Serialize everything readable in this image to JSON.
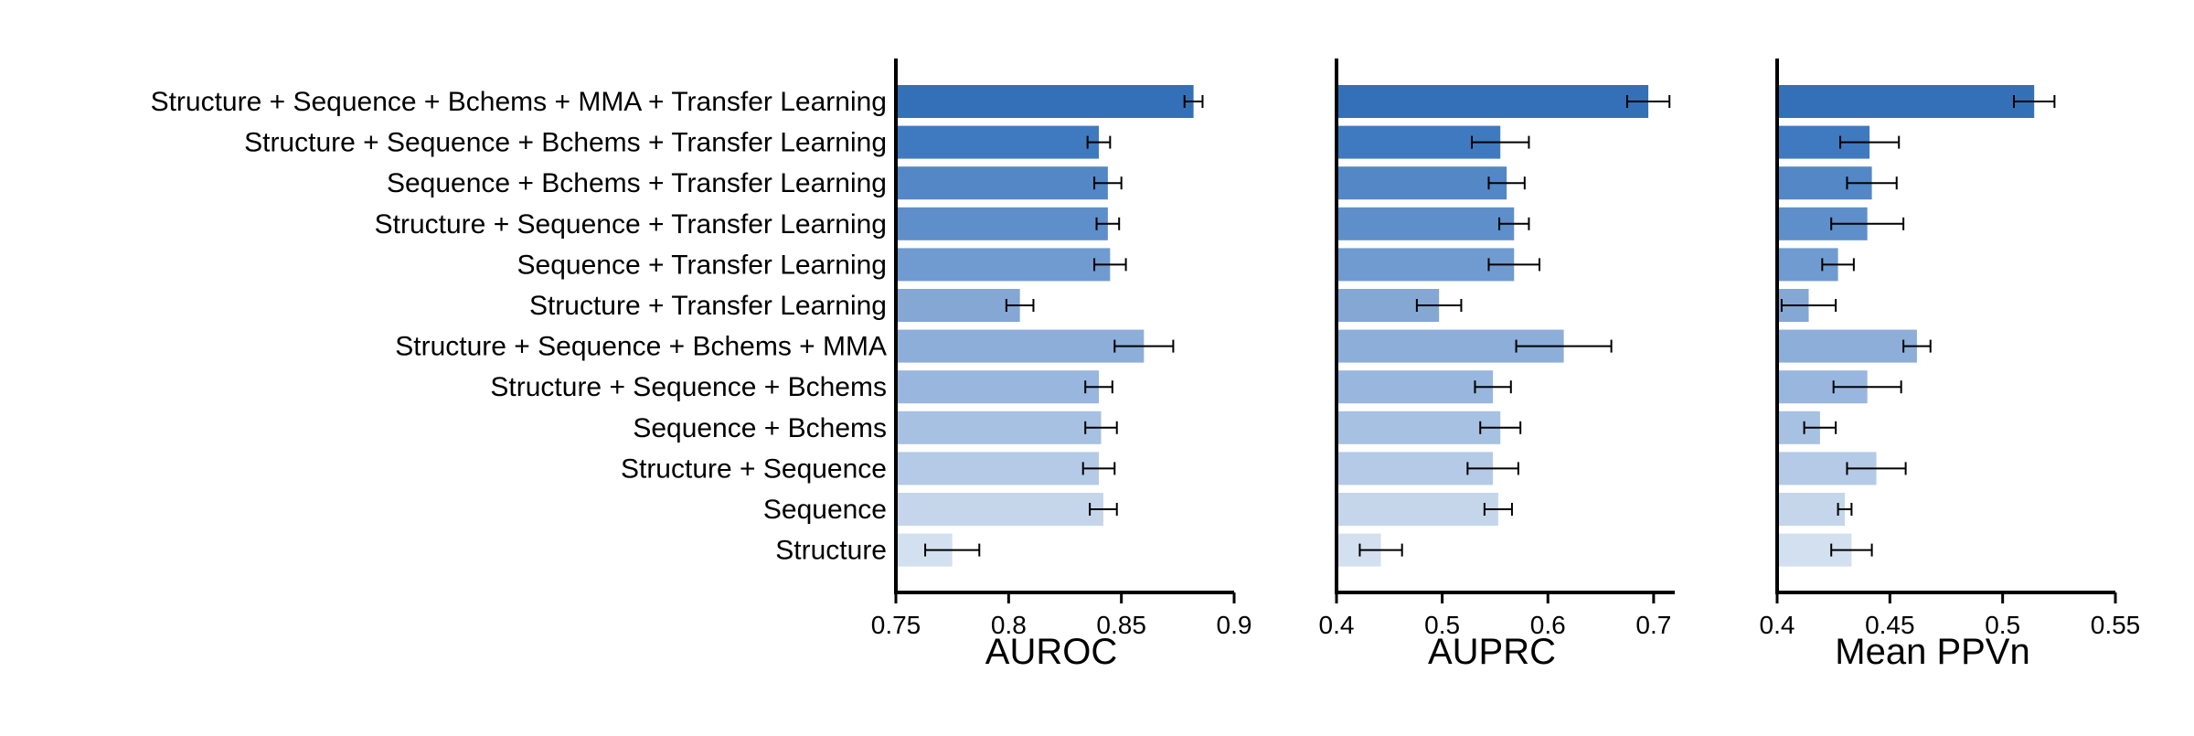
{
  "chart_data": {
    "type": "bar",
    "orientation": "horizontal",
    "grid": false,
    "legend": "none",
    "bar_colors": [
      "#3370b7",
      "#3f7ac0",
      "#5387c5",
      "#5f8fca",
      "#6f9bd0",
      "#84a7d4",
      "#8caed9",
      "#98b6de",
      "#a6c1e2",
      "#b4cae6",
      "#c5d6eb",
      "#d3e0ef"
    ],
    "categories": [
      "Structure + Sequence + Bchems + MMA + Transfer Learning",
      "Structure + Sequence + Bchems + Transfer Learning",
      "Sequence + Bchems + Transfer Learning",
      "Structure + Sequence + Transfer Learning",
      "Sequence + Transfer Learning",
      "Structure + Transfer Learning",
      "Structure + Sequence + Bchems + MMA",
      "Structure + Sequence + Bchems",
      "Sequence + Bchems",
      "Structure + Sequence",
      "Sequence",
      "Structure"
    ],
    "panels": [
      {
        "xlabel": "AUROC",
        "xlim": [
          0.75,
          0.9
        ],
        "ticks": [
          0.75,
          0.8,
          0.85,
          0.9
        ],
        "tick_labels": [
          "0.75",
          "0.8",
          "0.85",
          "0.9"
        ],
        "values": [
          0.882,
          0.84,
          0.844,
          0.844,
          0.845,
          0.805,
          0.86,
          0.84,
          0.841,
          0.84,
          0.842,
          0.775
        ],
        "errors": [
          0.004,
          0.005,
          0.006,
          0.005,
          0.007,
          0.006,
          0.013,
          0.006,
          0.007,
          0.007,
          0.006,
          0.012
        ]
      },
      {
        "xlabel": "AUPRC",
        "xlim": [
          0.4,
          0.72
        ],
        "ticks": [
          0.4,
          0.5,
          0.6,
          0.7
        ],
        "tick_labels": [
          "0.4",
          "0.5",
          "0.6",
          "0.7"
        ],
        "values": [
          0.695,
          0.555,
          0.561,
          0.568,
          0.568,
          0.497,
          0.615,
          0.548,
          0.555,
          0.548,
          0.553,
          0.442
        ],
        "errors": [
          0.02,
          0.027,
          0.017,
          0.014,
          0.024,
          0.021,
          0.045,
          0.017,
          0.019,
          0.024,
          0.013,
          0.02
        ]
      },
      {
        "xlabel": "Mean PPVn",
        "xlim": [
          0.4,
          0.55
        ],
        "ticks": [
          0.4,
          0.45,
          0.5,
          0.55
        ],
        "tick_labels": [
          "0.4",
          "0.45",
          "0.5",
          "0.55"
        ],
        "values": [
          0.514,
          0.441,
          0.442,
          0.44,
          0.427,
          0.414,
          0.462,
          0.44,
          0.419,
          0.444,
          0.43,
          0.433
        ],
        "errors": [
          0.009,
          0.013,
          0.011,
          0.016,
          0.007,
          0.012,
          0.006,
          0.015,
          0.007,
          0.013,
          0.003,
          0.009
        ]
      }
    ]
  }
}
